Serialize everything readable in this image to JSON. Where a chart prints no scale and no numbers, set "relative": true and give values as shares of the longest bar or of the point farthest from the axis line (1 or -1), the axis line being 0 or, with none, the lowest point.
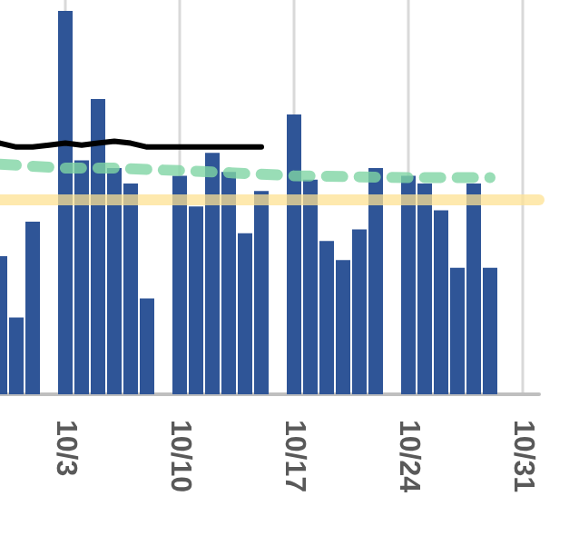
{
  "chart_data": {
    "type": "bar",
    "relative": true,
    "grid": true,
    "x": [
      "--09-29",
      "--09-30",
      "--10-01",
      "--10-03",
      "--10-04",
      "--10-05",
      "--10-06",
      "--10-07",
      "--10-08",
      "--10-10",
      "--10-11",
      "--10-12",
      "--10-13",
      "--10-14",
      "--10-15",
      "--10-17",
      "--10-18",
      "--10-19",
      "--10-20",
      "--10-21",
      "--10-22",
      "--10-24",
      "--10-25",
      "--10-26",
      "--10-27",
      "--10-28",
      "--10-29"
    ],
    "xlim": [
      "--09-29",
      "--11-01"
    ],
    "xticks": [
      {
        "value": "--10-03",
        "label": "10/3"
      },
      {
        "value": "--10-10",
        "label": "10/10"
      },
      {
        "value": "--10-17",
        "label": "10/17"
      },
      {
        "value": "--10-24",
        "label": "10/24"
      },
      {
        "value": "--10-31",
        "label": "10/31"
      }
    ],
    "series": [
      {
        "color": "#2f5597",
        "values": [
          0.36,
          0.2,
          0.45,
          1,
          0.61,
          0.77,
          0.59,
          0.55,
          0.25,
          0.57,
          0.49,
          0.63,
          0.58,
          0.42,
          0.53,
          0.73,
          0.56,
          0.4,
          0.35,
          0.43,
          0.59,
          0.57,
          0.55,
          0.48,
          0.33,
          0.55,
          0.33
        ]
      },
      {
        "type": "line",
        "color": "#000000",
        "line_style": "solid",
        "marker": "none",
        "x": [
          "--09-29",
          "--09-30",
          "--10-01",
          "--10-02",
          "--10-03",
          "--10-04",
          "--10-05",
          "--10-06",
          "--10-07",
          "--10-08",
          "--10-09",
          "--10-10",
          "--10-11",
          "--10-12",
          "--10-13",
          "--10-14",
          "--10-15"
        ],
        "values": [
          0.655,
          0.645,
          0.645,
          0.65,
          0.655,
          0.65,
          0.655,
          0.66,
          0.655,
          0.645,
          0.645,
          0.645,
          0.645,
          0.645,
          0.645,
          0.645,
          0.645
        ]
      },
      {
        "type": "line",
        "color": "#7fd4a4",
        "line_style": "dashed",
        "marker": "none",
        "x": [
          "--09-29",
          "--10-03",
          "--10-06",
          "--10-12",
          "--10-17",
          "--10-24",
          "--10-29"
        ],
        "values": [
          0.6,
          0.59,
          0.59,
          0.58,
          0.57,
          0.565,
          0.565
        ]
      }
    ],
    "ref_lines": [
      {
        "axis": "y",
        "value": 0.507,
        "color": "#fde293"
      }
    ]
  }
}
